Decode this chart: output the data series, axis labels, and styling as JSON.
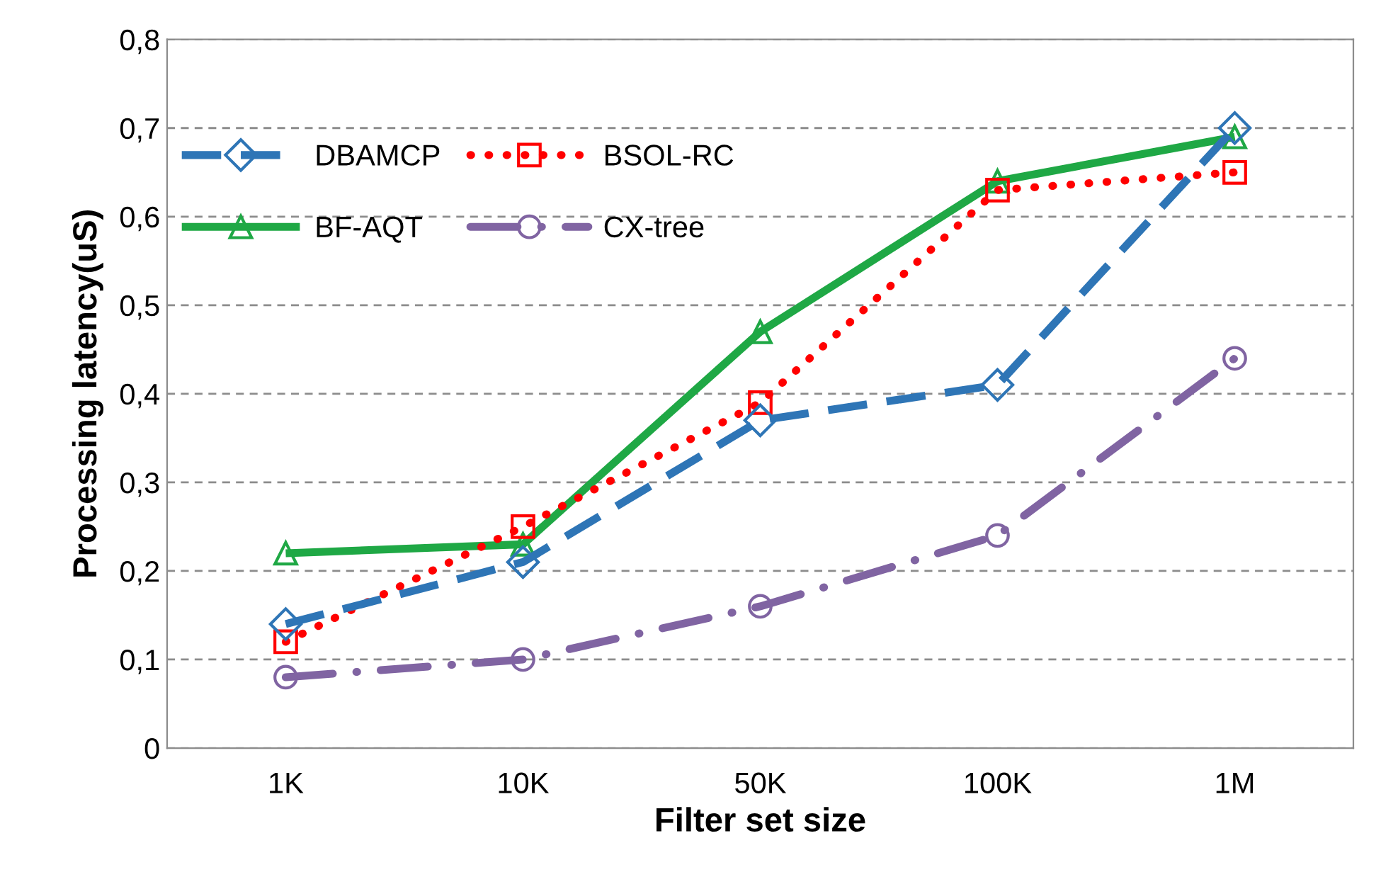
{
  "chart_data": {
    "type": "line",
    "xlabel": "Filter set size",
    "ylabel": "Processing latency(uS)",
    "categories": [
      "1K",
      "10K",
      "50K",
      "100K",
      "1M"
    ],
    "series": [
      {
        "name": "DBAMCP",
        "color": "#2e75b6",
        "values": [
          0.14,
          0.21,
          0.37,
          0.41,
          0.7
        ],
        "line_style": "dashed",
        "marker": "diamond"
      },
      {
        "name": "BSOL-RC",
        "color": "#ff0000",
        "values": [
          0.12,
          0.25,
          0.39,
          0.63,
          0.65
        ],
        "line_style": "dotted",
        "marker": "square"
      },
      {
        "name": "BF-AQT",
        "color": "#1fa845",
        "values": [
          0.22,
          0.23,
          0.47,
          0.64,
          0.69
        ],
        "line_style": "solid",
        "marker": "triangle"
      },
      {
        "name": "CX-tree",
        "color": "#8064a2",
        "values": [
          0.08,
          0.1,
          0.16,
          0.24,
          0.44
        ],
        "line_style": "dashdot",
        "marker": "circle"
      }
    ],
    "ylim": [
      0,
      0.8
    ],
    "yticks": [
      0,
      {
        "value": 0.1,
        "label": "0,1"
      },
      {
        "value": 0.2,
        "label": "0,2"
      },
      {
        "value": 0.3,
        "label": "0,3"
      },
      {
        "value": 0.4,
        "label": "0,4"
      },
      {
        "value": 0.5,
        "label": "0,5"
      },
      {
        "value": 0.6,
        "label": "0,6"
      },
      {
        "value": 0.7,
        "label": "0,7"
      },
      {
        "value": 0.8,
        "label": "0,8"
      }
    ],
    "grid": "y",
    "legend": "top left"
  }
}
